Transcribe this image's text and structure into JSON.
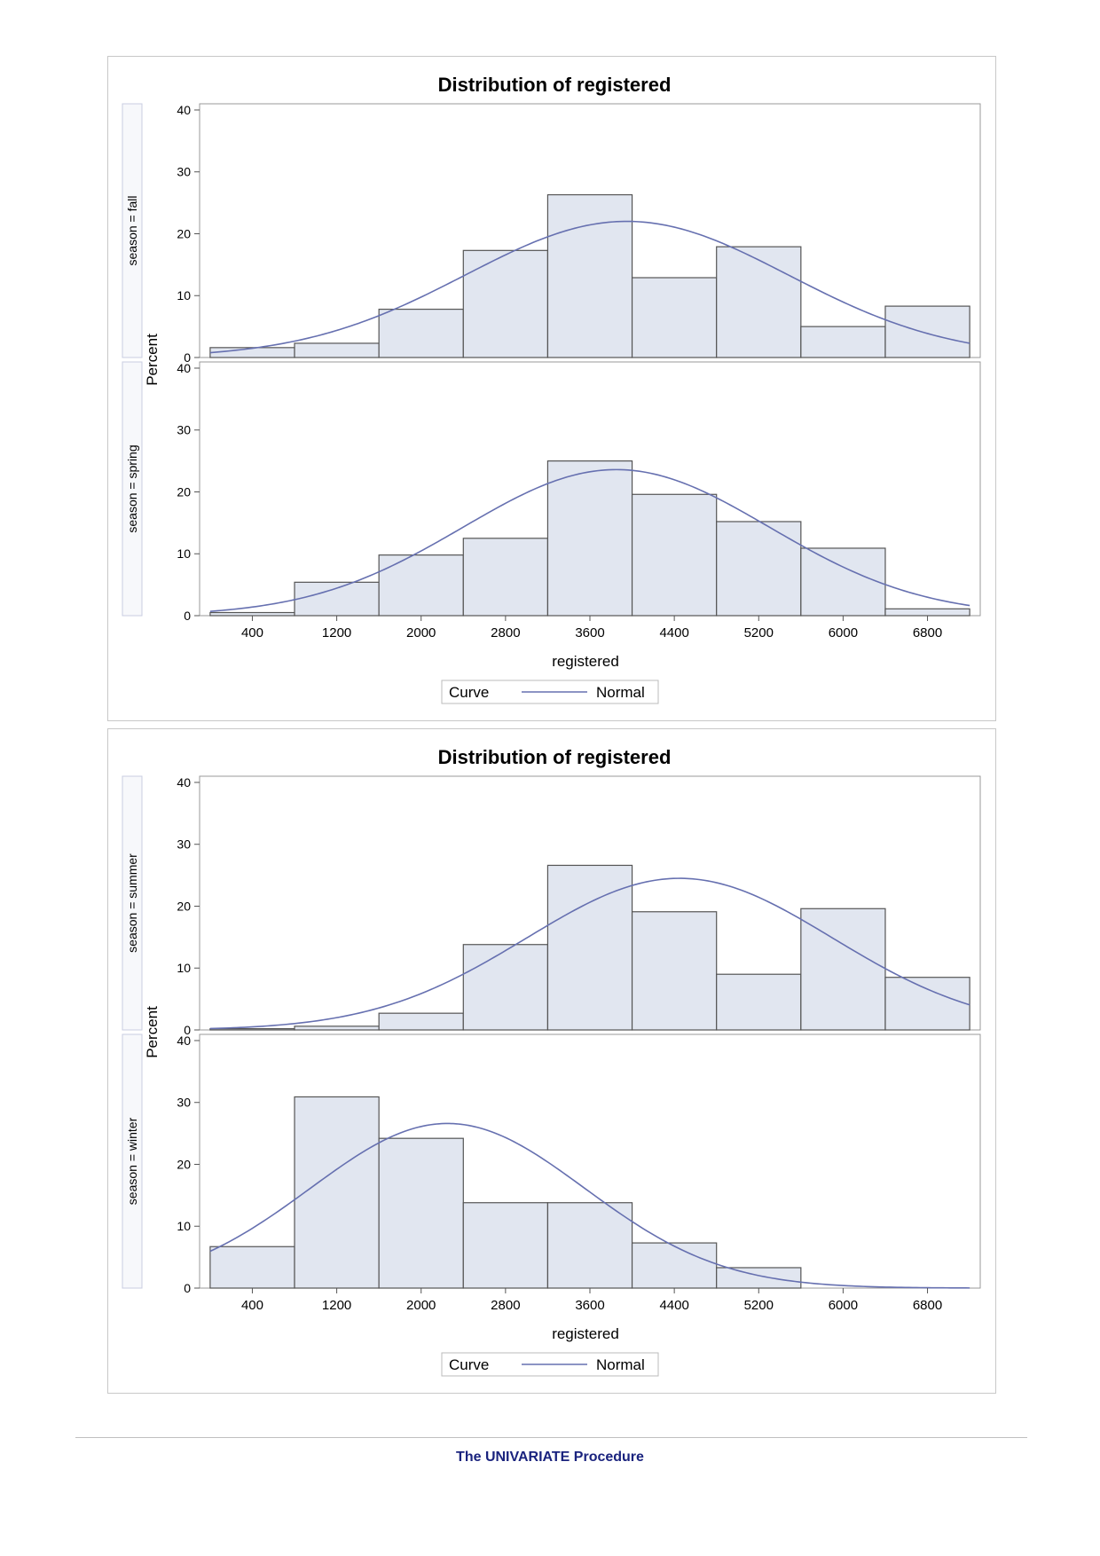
{
  "footer": {
    "procedure": "The UNIVARIATE Procedure"
  },
  "colors": {
    "bar_fill": "#e1e6f0",
    "bar_stroke": "#555555",
    "curve": "#6670b0",
    "frame": "#999999"
  },
  "chart_data": [
    {
      "type": "bar",
      "title": "Distribution of registered",
      "xlabel": "registered",
      "ylabel": "Percent",
      "xlim": [
        -100,
        7300
      ],
      "ylim": [
        0,
        41
      ],
      "x_ticks": [
        400,
        1200,
        2000,
        2800,
        3600,
        4400,
        5200,
        6000,
        6800
      ],
      "y_ticks": [
        0,
        10,
        20,
        30,
        40
      ],
      "bin_edges": [
        0,
        800,
        1600,
        2400,
        3200,
        4000,
        4800,
        5600,
        6400,
        7200
      ],
      "legend": {
        "title": "Curve",
        "entries": [
          "Normal"
        ],
        "position": "bottom"
      },
      "panels": [
        {
          "label": "season = fall",
          "values": [
            1.6,
            2.3,
            7.8,
            17.3,
            26.3,
            12.9,
            17.9,
            5.0,
            8.3
          ],
          "normal": {
            "mean": 3950,
            "sd": 1530,
            "peak": 22
          }
        },
        {
          "label": "season = spring",
          "values": [
            0.5,
            5.4,
            9.8,
            12.5,
            25.0,
            19.6,
            15.2,
            10.9,
            1.1
          ],
          "normal": {
            "mean": 3850,
            "sd": 1450,
            "peak": 23.6
          }
        }
      ]
    },
    {
      "type": "bar",
      "title": "Distribution of registered",
      "xlabel": "registered",
      "ylabel": "Percent",
      "xlim": [
        -100,
        7300
      ],
      "ylim": [
        0,
        41
      ],
      "x_ticks": [
        400,
        1200,
        2000,
        2800,
        3600,
        4400,
        5200,
        6000,
        6800
      ],
      "y_ticks": [
        0,
        10,
        20,
        30,
        40
      ],
      "bin_edges": [
        0,
        800,
        1600,
        2400,
        3200,
        4000,
        4800,
        5600,
        6400,
        7200
      ],
      "legend": {
        "title": "Curve",
        "entries": [
          "Normal"
        ],
        "position": "bottom"
      },
      "panels": [
        {
          "label": "season = summer",
          "values": [
            0.2,
            0.6,
            2.7,
            13.8,
            26.6,
            19.1,
            9.0,
            19.6,
            8.5
          ],
          "normal": {
            "mean": 4450,
            "sd": 1450,
            "peak": 24.5
          }
        },
        {
          "label": "season = winter",
          "values": [
            6.7,
            30.9,
            24.2,
            13.8,
            13.8,
            7.3,
            3.3,
            0.0,
            0.0
          ],
          "normal": {
            "mean": 2250,
            "sd": 1300,
            "peak": 26.6
          }
        }
      ]
    }
  ]
}
